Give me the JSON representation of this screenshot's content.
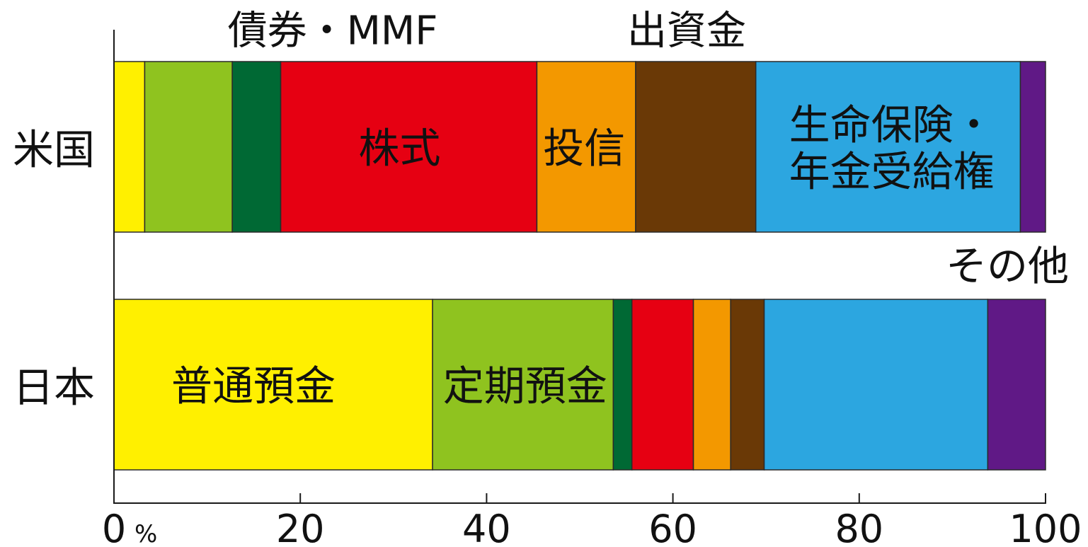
{
  "chart_data": {
    "type": "bar",
    "orientation": "horizontal",
    "stacked": true,
    "categories": [
      "米国",
      "日本"
    ],
    "series": [
      {
        "name": "普通預金",
        "values": [
          3.3,
          34.2
        ],
        "color": "#FFF000"
      },
      {
        "name": "定期預金",
        "values": [
          9.4,
          19.4
        ],
        "color": "#8FC31F"
      },
      {
        "name": "債券・MMF",
        "values": [
          5.2,
          2.0
        ],
        "color": "#006934"
      },
      {
        "name": "株式",
        "values": [
          27.5,
          6.6
        ],
        "color": "#E60012"
      },
      {
        "name": "投信",
        "values": [
          10.6,
          4.0
        ],
        "color": "#F39800"
      },
      {
        "name": "出資金",
        "values": [
          12.9,
          3.6
        ],
        "color": "#6A3906"
      },
      {
        "name": "生命保険・年金受給権",
        "values": [
          28.4,
          24.0
        ],
        "color": "#2CA6E0"
      },
      {
        "name": "その他",
        "values": [
          2.7,
          6.2
        ],
        "color": "#601986"
      }
    ],
    "xlim": [
      0,
      100
    ],
    "xticks": [
      0,
      20,
      40,
      60,
      80,
      100
    ],
    "x_unit": "%",
    "grid": false,
    "legend": "none"
  }
}
